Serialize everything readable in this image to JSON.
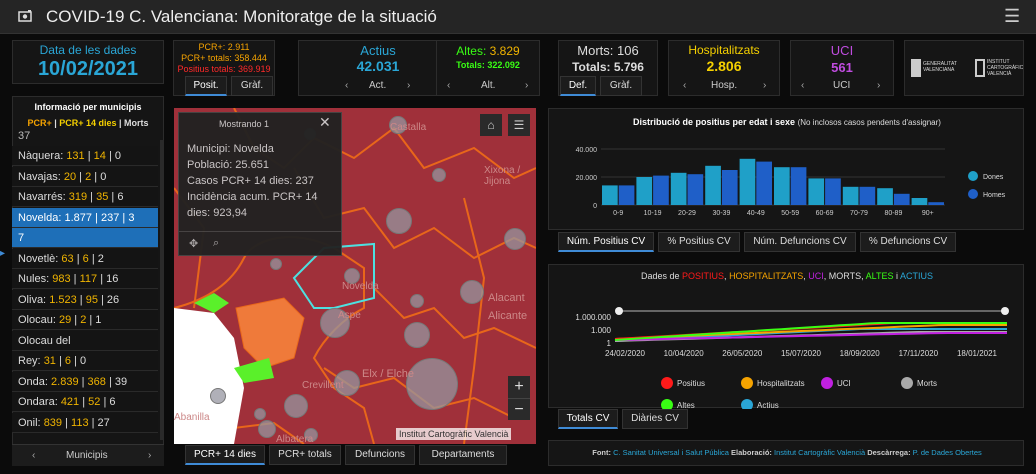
{
  "header": {
    "title": "COVID-19 C. Valenciana: Monitoratge de la situació"
  },
  "date": {
    "label": "Data de les dades",
    "value": "10/02/2021"
  },
  "pcr": {
    "line1": "PCR+: 2.911",
    "line2": "PCR+ totals: 358.444",
    "line3": "Positius totals: 369.919",
    "tab_pos": "Posit.",
    "tab_graf": "Gràf."
  },
  "actius": {
    "label": "Actius",
    "value": "42.031",
    "nav": "Act."
  },
  "altes": {
    "label_prefix": "Altes: ",
    "value": "3.829",
    "totals": "Totals: 322.092",
    "nav": "Alt."
  },
  "morts": {
    "label": "Morts: 106",
    "totals": "Totals: 5.796",
    "tab_def": "Def.",
    "tab_graf": "Gràf."
  },
  "hospit": {
    "label": "Hospitalitzats",
    "value": "2.806",
    "nav": "Hosp."
  },
  "uci": {
    "label": "UCI",
    "value": "561",
    "nav": "UCI"
  },
  "logos": {
    "gva": "GENERALITAT VALENCIANA",
    "icv": "INSTITUT CARTOGRÀFIC VALENCIÀ"
  },
  "municipis": {
    "title": "Informació per municipis",
    "subtitle_a": "PCR+",
    "subtitle_b": "PCR+ 14 dies",
    "subtitle_c": "Morts",
    "partial": "37",
    "rows": [
      {
        "name": "Nàquera: ",
        "a": "131",
        "b": "14",
        "c": "0"
      },
      {
        "name": "Navajas: ",
        "a": "20",
        "b": "2",
        "c": "0"
      },
      {
        "name": "Navarrés: ",
        "a": "319",
        "b": "35",
        "c": "6"
      },
      {
        "name": "Novelda: ",
        "a": "1.877",
        "b": "237",
        "c": "3"
      },
      {
        "name": "7",
        "a": "",
        "b": "",
        "c": ""
      },
      {
        "name": "Novetlè: ",
        "a": "63",
        "b": "6",
        "c": "2"
      },
      {
        "name": "Nules: ",
        "a": "983",
        "b": "117",
        "c": "16"
      },
      {
        "name": "Oliva: ",
        "a": "1.523",
        "b": "95",
        "c": "26"
      },
      {
        "name": "Olocau: ",
        "a": "29",
        "b": "2",
        "c": "1"
      },
      {
        "name": "Olocau del",
        "a": "",
        "b": "",
        "c": ""
      },
      {
        "name": "Rey: ",
        "a": "31",
        "b": "6",
        "c": "0"
      },
      {
        "name": "Onda: ",
        "a": "2.839",
        "b": "368",
        "c": "39"
      },
      {
        "name": "Ondara: ",
        "a": "421",
        "b": "52",
        "c": "6"
      },
      {
        "name": "Onil: ",
        "a": "839",
        "b": "113",
        "c": "27"
      }
    ],
    "footer": "Municipis"
  },
  "map": {
    "popup_header": "Mostrando 1",
    "popup_lines": [
      "Municipi: Novelda",
      "Població: 25.651",
      "Casos PCR+ 14 dies: 237",
      "Incidència acum. PCR+ 14",
      "dies: 923,94"
    ],
    "places": [
      "Castalla",
      "Xixona / Jijona",
      "Novelda",
      "Aspe",
      "Alacant",
      "Alicante",
      "Elx / Elche",
      "Crevillent",
      "Abanilla",
      "Albatera"
    ],
    "attribution": "Institut Cartogràfic Valencià",
    "tabs": [
      "PCR+ 14 dies",
      "PCR+ totals",
      "Defuncions",
      "Departaments"
    ],
    "zoom_in": "+",
    "zoom_out": "−"
  },
  "age_chart": {
    "tabs": [
      "Núm. Positius CV",
      "% Positius CV",
      "Núm. Defuncions CV",
      "% Defuncions CV"
    ],
    "legend": [
      "Dones",
      "Homes"
    ]
  },
  "time_chart": {
    "tabs": [
      "Totals CV",
      "Diàries CV"
    ],
    "legend": [
      "Positius",
      "Hospitalitzats",
      "UCI",
      "Morts",
      "Altes",
      "Actius"
    ]
  },
  "footer": {
    "font_label": "Font: ",
    "font_value": "C. Sanitat Universal i Salut Pública",
    "elab_label": " Elaboració: ",
    "elab_value": "Institut Cartogràfic Valencià",
    "desc_label": " Descàrrega: ",
    "desc_value": "P. de Dades Obertes"
  },
  "colors": {
    "positius": "#ff1a1a",
    "hospit": "#f5a300",
    "uci": "#c020e0",
    "morts": "#aaaaaa",
    "altes": "#39ff14",
    "actius": "#2aa6d6",
    "dones": "#1fa0c8",
    "homes": "#1f5fc8",
    "accent": "#3f8bd6"
  },
  "chart_data": [
    {
      "type": "bar",
      "title": "Distribució de positius per edat i sexe",
      "subtitle": "(No inclosos casos pendents d'assignar)",
      "categories": [
        "0-9",
        "10-19",
        "20-29",
        "30-39",
        "40-49",
        "50-59",
        "60-69",
        "70-79",
        "80-89",
        "90+"
      ],
      "series": [
        {
          "name": "Dones",
          "values": [
            14000,
            20000,
            23000,
            28000,
            33000,
            27000,
            19000,
            13000,
            12000,
            5000
          ]
        },
        {
          "name": "Homes",
          "values": [
            14000,
            21000,
            22000,
            25000,
            31000,
            27000,
            19000,
            13000,
            8000,
            2000
          ]
        }
      ],
      "yticks": [
        "0",
        "20.000",
        "40.000"
      ],
      "ylim": [
        0,
        40000
      ]
    },
    {
      "type": "line",
      "title": "Dades de POSITIUS, HOSPITALITZATS, UCI, MORTS, ALTES i ACTIUS",
      "title_parts": [
        "Dades de ",
        "POSITIUS",
        ", ",
        "HOSPITALITZATS",
        ", ",
        "UCI",
        ", MORTS, ",
        "ALTES",
        " i ",
        "ACTIUS"
      ],
      "x": [
        "24/02/2020",
        "10/04/2020",
        "26/05/2020",
        "15/07/2020",
        "18/09/2020",
        "17/11/2020",
        "18/01/2021"
      ],
      "yticks": [
        "1.000.000",
        "1.000",
        "1"
      ],
      "yscale": "log",
      "ylim": [
        1,
        1000000
      ]
    }
  ]
}
